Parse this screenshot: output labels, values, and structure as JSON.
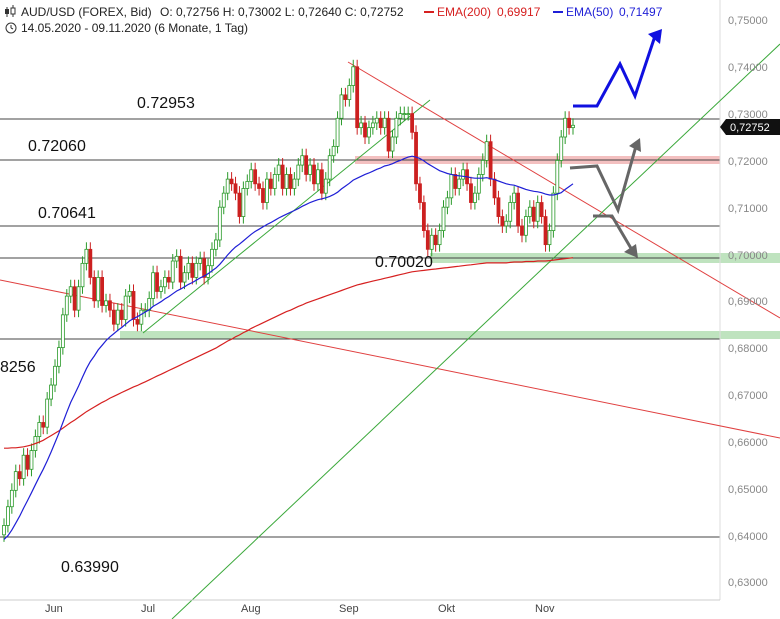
{
  "header": {
    "line1": "AUD/USD (FOREX, Bid)",
    "ohlc": "O: 0,72756  H: 0,73002  L: 0,72640  C: 0,72752",
    "ema200_label": "EMA(200)",
    "ema200_value": "0,69917",
    "ema50_label": "EMA(50)",
    "ema50_value": "0,71497",
    "line2": "14.05.2020 - 09.11.2020   (6 Monate, 1 Tag)"
  },
  "last_price_label": "0,72752",
  "colors": {
    "ema200": "#d62020",
    "ema50": "#1f1fd6",
    "up_candle": "#2a9a2a",
    "down_candle": "#cc2020",
    "trend_red": "#e04040",
    "trend_green": "#3aa83a",
    "support_zone": "#bfe3bf",
    "resist_zone": "#f3c0c0",
    "projection_blue": "#1010e0",
    "projection_gray": "#666666"
  },
  "chart_data": {
    "type": "candlestick",
    "ylim": [
      0.625,
      0.753
    ],
    "yticks": [
      "0,75000",
      "0,74000",
      "0,73000",
      "0,72000",
      "0,71000",
      "0,70000",
      "0,69000",
      "0,68000",
      "0,67000",
      "0,66000",
      "0,65000",
      "0,64000",
      "0,63000"
    ],
    "xticks": [
      "Jun",
      "Jul",
      "Aug",
      "Sep",
      "Okt",
      "Nov"
    ],
    "levels": [
      {
        "label": "0.72953",
        "value": 0.72953
      },
      {
        "label": "0.72060",
        "value": 0.7206
      },
      {
        "label": "0.70641",
        "value": 0.70641
      },
      {
        "label": "0.70020",
        "value": 0.7002
      },
      {
        "label": "8256",
        "value": 0.68256
      },
      {
        "label": "0.63990",
        "value": 0.6399
      }
    ],
    "close": [
      0.642,
      0.646,
      0.6495,
      0.6535,
      0.652,
      0.657,
      0.654,
      0.658,
      0.661,
      0.664,
      0.663,
      0.669,
      0.672,
      0.676,
      0.68,
      0.687,
      0.691,
      0.693,
      0.688,
      0.693,
      0.698,
      0.701,
      0.695,
      0.69,
      0.695,
      0.689,
      0.69,
      0.688,
      0.685,
      0.688,
      0.686,
      0.691,
      0.692,
      0.686,
      0.685,
      0.688,
      0.688,
      0.6905,
      0.696,
      0.692,
      0.693,
      0.695,
      0.694,
      0.6985,
      0.6995,
      0.694,
      0.696,
      0.698,
      0.695,
      0.698,
      0.699,
      0.695,
      0.6975,
      0.701,
      0.703,
      0.71,
      0.713,
      0.716,
      0.715,
      0.713,
      0.708,
      0.714,
      0.7155,
      0.718,
      0.715,
      0.714,
      0.711,
      0.716,
      0.714,
      0.717,
      0.719,
      0.714,
      0.717,
      0.714,
      0.716,
      0.719,
      0.721,
      0.717,
      0.719,
      0.715,
      0.718,
      0.713,
      0.716,
      0.721,
      0.723,
      0.729,
      0.734,
      0.733,
      0.736,
      0.74,
      0.727,
      0.728,
      0.725,
      0.727,
      0.728,
      0.729,
      0.727,
      0.729,
      0.722,
      0.725,
      0.729,
      0.73,
      0.73,
      0.73,
      0.726,
      0.715,
      0.711,
      0.705,
      0.701,
      0.704,
      0.702,
      0.705,
      0.71,
      0.712,
      0.717,
      0.714,
      0.716,
      0.718,
      0.715,
      0.711,
      0.713,
      0.717,
      0.72,
      0.724,
      0.716,
      0.712,
      0.708,
      0.706,
      0.707,
      0.711,
      0.713,
      0.706,
      0.704,
      0.708,
      0.71,
      0.707,
      0.711,
      0.708,
      0.702,
      0.705,
      0.713,
      0.72,
      0.725,
      0.729,
      0.727,
      0.7275
    ],
    "ema50": [
      0.639,
      0.6398,
      0.641,
      0.6425,
      0.644,
      0.6457,
      0.6473,
      0.649,
      0.6507,
      0.6524,
      0.654,
      0.6558,
      0.6577,
      0.6597,
      0.6617,
      0.664,
      0.6662,
      0.6683,
      0.67,
      0.6718,
      0.6737,
      0.6755,
      0.677,
      0.6782,
      0.6795,
      0.6805,
      0.6815,
      0.6823,
      0.683,
      0.6837,
      0.6843,
      0.685,
      0.6857,
      0.6862,
      0.6866,
      0.6871,
      0.6876,
      0.6881,
      0.6888,
      0.6893,
      0.6898,
      0.6904,
      0.6909,
      0.6915,
      0.6921,
      0.6925,
      0.693,
      0.6935,
      0.6939,
      0.6944,
      0.6949,
      0.6953,
      0.6958,
      0.6964,
      0.697,
      0.6978,
      0.6988,
      0.6998,
      0.7007,
      0.7015,
      0.7021,
      0.7028,
      0.7035,
      0.7042,
      0.7048,
      0.7053,
      0.7058,
      0.7063,
      0.7067,
      0.7072,
      0.7077,
      0.7081,
      0.7085,
      0.7089,
      0.7093,
      0.7097,
      0.7102,
      0.7106,
      0.711,
      0.7113,
      0.7116,
      0.7118,
      0.712,
      0.7123,
      0.7127,
      0.7132,
      0.7139,
      0.7145,
      0.7151,
      0.7158,
      0.7162,
      0.7166,
      0.717,
      0.7173,
      0.7177,
      0.7181,
      0.7184,
      0.7188,
      0.719,
      0.7193,
      0.7197,
      0.72,
      0.7204,
      0.7207,
      0.7209,
      0.7207,
      0.7204,
      0.7199,
      0.7193,
      0.7188,
      0.7183,
      0.7178,
      0.7175,
      0.7172,
      0.717,
      0.7168,
      0.7167,
      0.7166,
      0.7165,
      0.7163,
      0.7162,
      0.7162,
      0.7162,
      0.7163,
      0.7161,
      0.7159,
      0.7156,
      0.7153,
      0.715,
      0.7148,
      0.7147,
      0.7144,
      0.7141,
      0.7138,
      0.7136,
      0.7134,
      0.7133,
      0.7131,
      0.7128,
      0.7126,
      0.7126,
      0.7128,
      0.7131,
      0.7138,
      0.7144,
      0.715
    ],
    "ema200": [
      0.6585,
      0.6585,
      0.6586,
      0.6586,
      0.6587,
      0.6588,
      0.659,
      0.6592,
      0.6595,
      0.6598,
      0.6602,
      0.6607,
      0.6612,
      0.6617,
      0.6622,
      0.6628,
      0.6634,
      0.664,
      0.6645,
      0.6651,
      0.6657,
      0.6663,
      0.6668,
      0.6673,
      0.6678,
      0.6683,
      0.6687,
      0.6692,
      0.6696,
      0.67,
      0.6704,
      0.6708,
      0.6712,
      0.6716,
      0.6719,
      0.6723,
      0.6727,
      0.6731,
      0.6735,
      0.6739,
      0.6743,
      0.6747,
      0.6751,
      0.6755,
      0.6759,
      0.6763,
      0.6767,
      0.6771,
      0.6775,
      0.6779,
      0.6783,
      0.6787,
      0.6791,
      0.6795,
      0.6799,
      0.6804,
      0.6809,
      0.6814,
      0.6818,
      0.6823,
      0.6827,
      0.6832,
      0.6836,
      0.6841,
      0.6845,
      0.6849,
      0.6853,
      0.6857,
      0.6861,
      0.6865,
      0.6869,
      0.6873,
      0.6877,
      0.688,
      0.6884,
      0.6888,
      0.6891,
      0.6895,
      0.6898,
      0.6901,
      0.6904,
      0.6907,
      0.691,
      0.6913,
      0.6916,
      0.6919,
      0.6922,
      0.6925,
      0.6928,
      0.6931,
      0.6934,
      0.6936,
      0.6938,
      0.694,
      0.6942,
      0.6944,
      0.6946,
      0.6948,
      0.695,
      0.6952,
      0.6954,
      0.6956,
      0.6958,
      0.696,
      0.6962,
      0.6963,
      0.6964,
      0.6965,
      0.6966,
      0.6967,
      0.6968,
      0.6969,
      0.697,
      0.6971,
      0.6972,
      0.6973,
      0.6974,
      0.6975,
      0.6976,
      0.6977,
      0.6978,
      0.6979,
      0.698,
      0.6981,
      0.6981,
      0.6981,
      0.6981,
      0.6981,
      0.6981,
      0.6982,
      0.6983,
      0.6983,
      0.6983,
      0.6984,
      0.6984,
      0.6984,
      0.6985,
      0.6985,
      0.6985,
      0.6986,
      0.6987,
      0.6988,
      0.6989,
      0.699,
      0.6991,
      0.6992
    ]
  }
}
